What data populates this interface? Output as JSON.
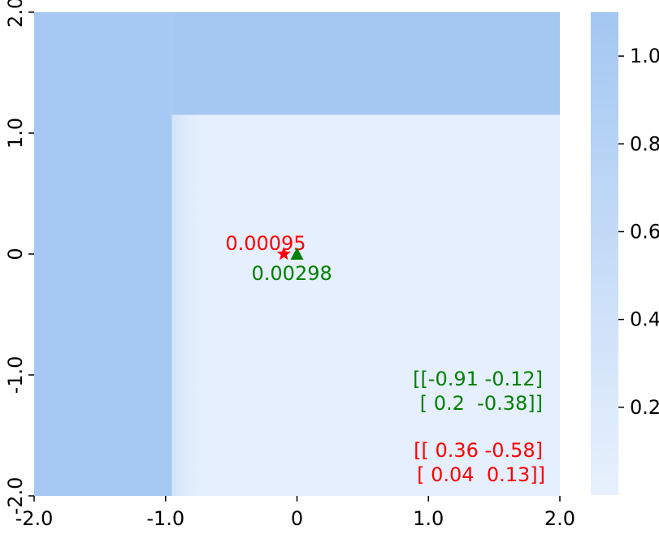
{
  "chart_data": {
    "type": "heatmap",
    "title": "",
    "xlabel": "",
    "ylabel": "",
    "xlim": [
      -2.0,
      2.0
    ],
    "ylim": [
      -2.0,
      2.0
    ],
    "x_ticks": [
      {
        "value": -2.0,
        "label": "-2.0"
      },
      {
        "value": -1.0,
        "label": "-1.0"
      },
      {
        "value": 0.0,
        "label": "0"
      },
      {
        "value": 1.0,
        "label": "1.0"
      },
      {
        "value": 2.0,
        "label": "2.0"
      }
    ],
    "y_ticks": [
      {
        "value": -2.0,
        "label": "-2.0"
      },
      {
        "value": -1.0,
        "label": "-1.0"
      },
      {
        "value": 0.0,
        "label": "0"
      },
      {
        "value": 1.0,
        "label": "1.0"
      },
      {
        "value": 2.0,
        "label": "2.0"
      }
    ],
    "colorbar": {
      "range": [
        0.0,
        1.1
      ],
      "low_color": "#e8f1fd",
      "high_color": "#a3c7f2",
      "ticks": [
        {
          "value": 0.2,
          "label": "0.2"
        },
        {
          "value": 0.4,
          "label": "0.4"
        },
        {
          "value": 0.6,
          "label": "0.6"
        },
        {
          "value": 0.8,
          "label": "0.8"
        },
        {
          "value": 1.0,
          "label": "1.0"
        }
      ]
    },
    "regions": [
      {
        "name": "left-band",
        "x": [
          -2.0,
          -0.95
        ],
        "y": [
          -2.0,
          2.0
        ],
        "value": 1.05
      },
      {
        "name": "top-band",
        "x": [
          -0.95,
          2.0
        ],
        "y": [
          1.15,
          2.0
        ],
        "value": 1.08
      },
      {
        "name": "low-region",
        "x": [
          -0.95,
          2.0
        ],
        "y": [
          -2.0,
          1.15
        ],
        "value": 0.05
      }
    ],
    "markers": [
      {
        "name": "star",
        "shape": "star",
        "x": -0.1,
        "y": 0.0,
        "color": "#ff0000",
        "label": "0.00095"
      },
      {
        "name": "triangle",
        "shape": "triangle",
        "x": 0.0,
        "y": 0.0,
        "color": "#008000",
        "label": "0.00298"
      }
    ],
    "matrices": [
      {
        "name": "green-matrix",
        "color": "#008000",
        "lines": [
          "[[-0.91 -0.12]",
          "[ 0.2  -0.38]]"
        ]
      },
      {
        "name": "red-matrix",
        "color": "#ff0000",
        "lines": [
          "[[ 0.36 -0.58]",
          "[ 0.04  0.13]]"
        ]
      }
    ]
  }
}
